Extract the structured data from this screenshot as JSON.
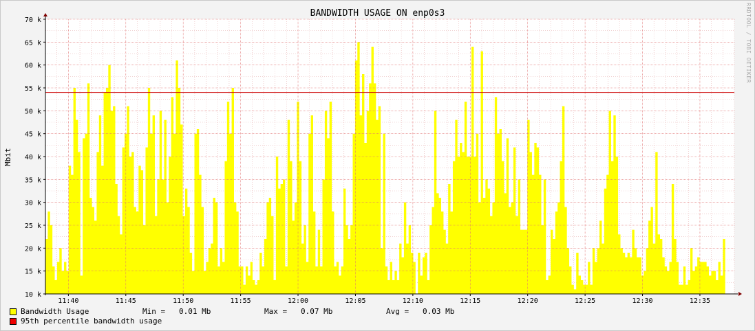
{
  "title": "BANDWIDTH USAGE ON enp0s3",
  "watermark": "RRDTOOL / TOBI OETIKER",
  "colors": {
    "area": "#ffff00",
    "percentile_line": "#cc0000",
    "grid_minor": "#e8b4b4",
    "grid_major": "#e07070",
    "background": "#ffffff"
  },
  "legend": {
    "bandwidth_label": "Bandwidth Usage",
    "min_text": "Min =   0.01 Mb",
    "max_text": "Max =   0.07 Mb",
    "avg_text": "Avg =   0.03 Mb",
    "percentile_label": "95th percentile bandwidth usage"
  },
  "chart_data": {
    "type": "area",
    "ylabel": "Mbit",
    "ylim": [
      10000,
      70000
    ],
    "y_ticks": [
      10000,
      15000,
      20000,
      25000,
      30000,
      35000,
      40000,
      45000,
      50000,
      55000,
      60000,
      65000,
      70000
    ],
    "y_tick_labels": [
      "10 k",
      "15 k",
      "20 k",
      "25 k",
      "30 k",
      "35 k",
      "40 k",
      "45 k",
      "50 k",
      "55 k",
      "60 k",
      "65 k",
      "70 k"
    ],
    "x_tick_labels": [
      "11:40",
      "11:45",
      "11:50",
      "11:55",
      "12:00",
      "12:05",
      "12:10",
      "12:15",
      "12:20",
      "12:25",
      "12:30",
      "12:35"
    ],
    "x_range": [
      "11:38",
      "12:38"
    ],
    "percentile_95": 54000,
    "grid": true,
    "series": [
      {
        "name": "Bandwidth Usage",
        "x_start": "11:38",
        "x_end": "12:37",
        "values": [
          22000,
          28000,
          25000,
          16000,
          13000,
          17000,
          20000,
          15000,
          17000,
          15000,
          38000,
          36000,
          55000,
          48000,
          41000,
          14000,
          44000,
          45000,
          56000,
          31000,
          29000,
          26000,
          41000,
          49000,
          38000,
          54000,
          55000,
          60000,
          50000,
          51000,
          34000,
          27000,
          23000,
          42000,
          45000,
          51000,
          40000,
          41000,
          29000,
          28000,
          38000,
          37000,
          25000,
          42000,
          55000,
          45000,
          49000,
          27000,
          35000,
          50000,
          35000,
          48000,
          30000,
          40000,
          53000,
          45000,
          61000,
          55000,
          47000,
          27000,
          33000,
          29000,
          19000,
          15000,
          45000,
          46000,
          36000,
          29000,
          15000,
          17000,
          20000,
          21000,
          31000,
          30000,
          16000,
          20000,
          17000,
          39000,
          52000,
          45000,
          55000,
          30000,
          28000,
          16000,
          16000,
          12000,
          16000,
          14000,
          17000,
          13000,
          12000,
          13000,
          19000,
          16000,
          22000,
          30000,
          31000,
          27000,
          13000,
          40000,
          33000,
          34000,
          35000,
          16000,
          48000,
          39000,
          26000,
          30000,
          52000,
          39000,
          21000,
          25000,
          17000,
          45000,
          49000,
          28000,
          16000,
          24000,
          16000,
          35000,
          50000,
          44000,
          52000,
          28000,
          16000,
          17000,
          14000,
          16000,
          33000,
          25000,
          22000,
          25000,
          45000,
          61000,
          65000,
          49000,
          58000,
          43000,
          50000,
          56000,
          64000,
          56000,
          48000,
          51000,
          20000,
          45000,
          16000,
          13000,
          17000,
          13000,
          15000,
          13000,
          21000,
          18000,
          30000,
          21000,
          25000,
          19000,
          17000,
          10000,
          19000,
          14000,
          18000,
          19000,
          13000,
          25000,
          29000,
          50000,
          32000,
          31000,
          28000,
          24000,
          21000,
          34000,
          28000,
          39000,
          48000,
          40000,
          43000,
          41000,
          52000,
          40000,
          40000,
          64000,
          40000,
          45000,
          30000,
          63000,
          31000,
          35000,
          33000,
          27000,
          30000,
          53000,
          45000,
          46000,
          39000,
          32000,
          44000,
          29000,
          30000,
          42000,
          27000,
          35000,
          24000,
          24000,
          24000,
          48000,
          41000,
          36000,
          43000,
          42000,
          36000,
          25000,
          35000,
          13000,
          14000,
          24000,
          22000,
          28000,
          30000,
          39000,
          51000,
          29000,
          20000,
          16000,
          12000,
          11000,
          19000,
          14000,
          13000,
          12000,
          12000,
          17000,
          12000,
          20000,
          17000,
          20000,
          26000,
          21000,
          33000,
          36000,
          50000,
          39000,
          49000,
          40000,
          23000,
          20000,
          19000,
          18000,
          19000,
          18000,
          24000,
          20000,
          18000,
          18000,
          14000,
          15000,
          20000,
          26000,
          29000,
          21000,
          41000,
          23000,
          22000,
          18000,
          16000,
          15000,
          17000,
          34000,
          22000,
          17000,
          12000,
          12000,
          16000,
          12000,
          13000,
          20000,
          15000,
          16000,
          18000,
          17000,
          17000,
          17000,
          16000,
          14000,
          15000,
          15000,
          13000,
          17000,
          14000,
          22000
        ]
      }
    ]
  }
}
